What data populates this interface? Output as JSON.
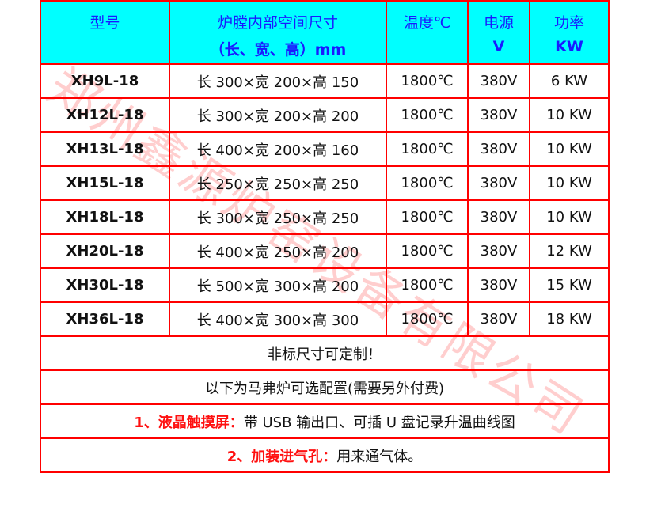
{
  "header": {
    "model": "型号",
    "size_line1": "炉膛内部空间尺寸",
    "size_line2": "（长、宽、高）mm",
    "temp": "温度℃",
    "voltage_line1": "电源",
    "voltage_line2": "V",
    "power_line1": "功率",
    "power_line2": "KW"
  },
  "rows": [
    {
      "model": "XH9L-18",
      "size": "长 300×宽 200×高 150",
      "temp": "1800℃",
      "voltage": "380V",
      "power": "6 KW"
    },
    {
      "model": "XH12L-18",
      "size": "长 300×宽 200×高 200",
      "temp": "1800℃",
      "voltage": "380V",
      "power": "10 KW"
    },
    {
      "model": "XH13L-18",
      "size": "长 400×宽 200×高 160",
      "temp": "1800℃",
      "voltage": "380V",
      "power": "10 KW"
    },
    {
      "model": "XH15L-18",
      "size": "长 250×宽 250×高 250",
      "temp": "1800℃",
      "voltage": "380V",
      "power": "10 KW"
    },
    {
      "model": "XH18L-18",
      "size": "长 300×宽 250×高 250",
      "temp": "1800℃",
      "voltage": "380V",
      "power": "10 KW"
    },
    {
      "model": "XH20L-18",
      "size": "长 400×宽 250×高 200",
      "temp": "1800℃",
      "voltage": "380V",
      "power": "12 KW"
    },
    {
      "model": "XH30L-18",
      "size": "长 500×宽 300×高 200",
      "temp": "1800℃",
      "voltage": "380V",
      "power": "15 KW"
    },
    {
      "model": "XH36L-18",
      "size": "长 400×宽 300×高 300",
      "temp": "1800℃",
      "voltage": "380V",
      "power": "18 KW"
    }
  ],
  "notes": {
    "custom": "非标尺寸可定制！",
    "options_intro": "以下为马弗炉可选配置(需要另外付费)",
    "option1_label": "1、液晶触摸屏：",
    "option1_text": "带 USB 输出口、可插 U 盘记录升温曲线图",
    "option2_label": "2、加装进气孔：",
    "option2_text": "用来通气体。"
  },
  "watermark": "郑州鑫源炉窑设备有限公司",
  "colors": {
    "header_bg": "#00ffff",
    "header_text": "#1a1aff",
    "border": "#ff0000",
    "highlight": "#ff1010"
  }
}
